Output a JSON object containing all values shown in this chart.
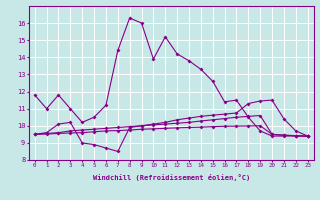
{
  "xlabel": "Windchill (Refroidissement éolien,°C)",
  "bg_color": "#c8e8e8",
  "line_color": "#880088",
  "ylim": [
    8,
    17
  ],
  "xlim": [
    -0.5,
    23.5
  ],
  "yticks": [
    8,
    9,
    10,
    11,
    12,
    13,
    14,
    15,
    16
  ],
  "xticks": [
    0,
    1,
    2,
    3,
    4,
    5,
    6,
    7,
    8,
    9,
    10,
    11,
    12,
    13,
    14,
    15,
    16,
    17,
    18,
    19,
    20,
    21,
    22,
    23
  ],
  "line1_x": [
    0,
    1,
    2,
    3,
    4,
    5,
    6,
    7,
    8,
    9,
    10,
    11,
    12,
    13,
    14,
    15,
    16,
    17,
    18,
    19,
    20,
    21,
    22,
    23
  ],
  "line1_y": [
    11.8,
    11.0,
    11.8,
    11.0,
    10.2,
    10.5,
    11.2,
    14.4,
    16.3,
    16.0,
    13.9,
    15.2,
    14.2,
    13.8,
    13.3,
    12.6,
    11.4,
    11.5,
    10.5,
    9.7,
    9.4,
    9.4,
    9.4,
    9.4
  ],
  "line2_x": [
    0,
    1,
    2,
    3,
    4,
    5,
    6,
    7,
    8,
    9,
    10,
    11,
    12,
    13,
    14,
    15,
    16,
    17,
    18,
    19,
    20,
    21,
    22,
    23
  ],
  "line2_y": [
    9.5,
    9.6,
    10.1,
    10.2,
    9.0,
    8.9,
    8.7,
    8.5,
    9.9,
    10.0,
    10.1,
    10.2,
    10.35,
    10.45,
    10.55,
    10.62,
    10.68,
    10.75,
    11.3,
    11.45,
    11.5,
    10.4,
    9.7,
    9.4
  ],
  "line3_x": [
    0,
    1,
    2,
    3,
    4,
    5,
    6,
    7,
    8,
    9,
    10,
    11,
    12,
    13,
    14,
    15,
    16,
    17,
    18,
    19,
    20,
    21,
    22,
    23
  ],
  "line3_y": [
    9.5,
    9.55,
    9.6,
    9.7,
    9.75,
    9.8,
    9.85,
    9.9,
    9.95,
    10.0,
    10.05,
    10.1,
    10.15,
    10.2,
    10.28,
    10.35,
    10.42,
    10.5,
    10.55,
    10.6,
    9.5,
    9.45,
    9.42,
    9.4
  ],
  "line4_x": [
    0,
    1,
    2,
    3,
    4,
    5,
    6,
    7,
    8,
    9,
    10,
    11,
    12,
    13,
    14,
    15,
    16,
    17,
    18,
    19,
    20,
    21,
    22,
    23
  ],
  "line4_y": [
    9.5,
    9.52,
    9.55,
    9.58,
    9.6,
    9.65,
    9.7,
    9.72,
    9.75,
    9.8,
    9.82,
    9.85,
    9.88,
    9.9,
    9.92,
    9.95,
    9.97,
    9.98,
    9.99,
    10.0,
    9.5,
    9.45,
    9.42,
    9.38
  ]
}
